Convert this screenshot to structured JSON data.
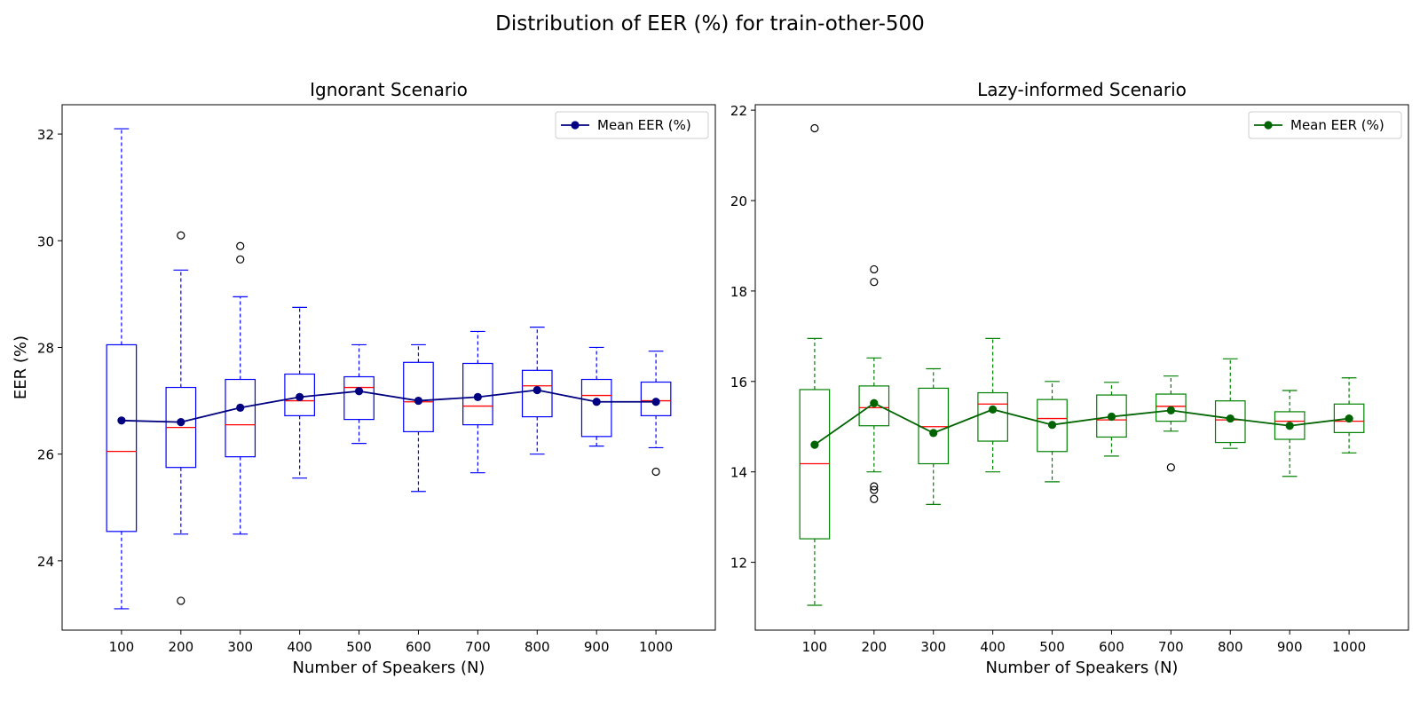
{
  "figure": {
    "title": "Distribution of EER (%) for train-other-500"
  },
  "chart_data": [
    {
      "type": "box",
      "title": "Ignorant Scenario",
      "xlabel": "Number of Speakers (N)",
      "ylabel": "EER (%)",
      "categories": [
        "100",
        "200",
        "300",
        "400",
        "500",
        "600",
        "700",
        "800",
        "900",
        "1000"
      ],
      "ylim": [
        22.7,
        32.55
      ],
      "yticks": [
        24,
        26,
        28,
        30,
        32
      ],
      "grid": false,
      "legend": {
        "position": "top-right",
        "entries": [
          "Mean EER (%)"
        ]
      },
      "box_color": "#0000ff",
      "median_color": "#ff0000",
      "mean_color": "#000080",
      "boxes": [
        {
          "whislo": 23.1,
          "q1": 24.55,
          "med": 26.05,
          "q3": 28.05,
          "whishi": 32.1,
          "fliers": []
        },
        {
          "whislo": 24.5,
          "q1": 25.75,
          "med": 26.5,
          "q3": 27.25,
          "whishi": 29.45,
          "fliers": [
            30.1,
            23.25
          ]
        },
        {
          "whislo": 24.5,
          "q1": 25.95,
          "med": 26.55,
          "q3": 27.4,
          "whishi": 28.95,
          "fliers": [
            29.9,
            29.65
          ]
        },
        {
          "whislo": 25.55,
          "q1": 26.72,
          "med": 27.0,
          "q3": 27.5,
          "whishi": 28.75,
          "fliers": []
        },
        {
          "whislo": 26.2,
          "q1": 26.65,
          "med": 27.25,
          "q3": 27.45,
          "whishi": 28.05,
          "fliers": []
        },
        {
          "whislo": 25.3,
          "q1": 26.42,
          "med": 26.98,
          "q3": 27.72,
          "whishi": 28.05,
          "fliers": []
        },
        {
          "whislo": 25.65,
          "q1": 26.55,
          "med": 26.9,
          "q3": 27.7,
          "whishi": 28.3,
          "fliers": []
        },
        {
          "whislo": 26.0,
          "q1": 26.7,
          "med": 27.28,
          "q3": 27.57,
          "whishi": 28.38,
          "fliers": []
        },
        {
          "whislo": 26.15,
          "q1": 26.33,
          "med": 27.1,
          "q3": 27.4,
          "whishi": 28.0,
          "fliers": []
        },
        {
          "whislo": 26.12,
          "q1": 26.72,
          "med": 27.0,
          "q3": 27.35,
          "whishi": 27.93,
          "fliers": [
            25.67
          ]
        }
      ],
      "series": [
        {
          "name": "Mean EER (%)",
          "values": [
            26.63,
            26.6,
            26.87,
            27.07,
            27.18,
            27.0,
            27.07,
            27.2,
            26.98,
            26.98
          ]
        }
      ]
    },
    {
      "type": "box",
      "title": "Lazy-informed Scenario",
      "xlabel": "Number of Speakers (N)",
      "ylabel": "",
      "categories": [
        "100",
        "200",
        "300",
        "400",
        "500",
        "600",
        "700",
        "800",
        "900",
        "1000"
      ],
      "ylim": [
        10.5,
        22.12
      ],
      "yticks": [
        12,
        14,
        16,
        18,
        20,
        22
      ],
      "grid": false,
      "legend": {
        "position": "top-right",
        "entries": [
          "Mean EER (%)"
        ]
      },
      "box_color": "#008000",
      "median_color": "#ff0000",
      "mean_color": "#006400",
      "boxes": [
        {
          "whislo": 11.05,
          "q1": 12.52,
          "med": 14.18,
          "q3": 15.82,
          "whishi": 16.95,
          "fliers": [
            21.6
          ]
        },
        {
          "whislo": 14.0,
          "q1": 15.02,
          "med": 15.42,
          "q3": 15.9,
          "whishi": 16.52,
          "fliers": [
            18.48,
            18.2,
            13.68,
            13.6,
            13.4
          ]
        },
        {
          "whislo": 13.28,
          "q1": 14.18,
          "med": 15.0,
          "q3": 15.85,
          "whishi": 16.28,
          "fliers": []
        },
        {
          "whislo": 14.0,
          "q1": 14.68,
          "med": 15.5,
          "q3": 15.75,
          "whishi": 16.95,
          "fliers": []
        },
        {
          "whislo": 13.78,
          "q1": 14.45,
          "med": 15.18,
          "q3": 15.6,
          "whishi": 16.0,
          "fliers": []
        },
        {
          "whislo": 14.35,
          "q1": 14.77,
          "med": 15.15,
          "q3": 15.7,
          "whishi": 15.98,
          "fliers": []
        },
        {
          "whislo": 14.9,
          "q1": 15.12,
          "med": 15.45,
          "q3": 15.72,
          "whishi": 16.12,
          "fliers": [
            14.1
          ]
        },
        {
          "whislo": 14.52,
          "q1": 14.65,
          "med": 15.15,
          "q3": 15.57,
          "whishi": 16.5,
          "fliers": []
        },
        {
          "whislo": 13.9,
          "q1": 14.72,
          "med": 15.12,
          "q3": 15.33,
          "whishi": 15.8,
          "fliers": []
        },
        {
          "whislo": 14.42,
          "q1": 14.87,
          "med": 15.12,
          "q3": 15.5,
          "whishi": 16.08,
          "fliers": []
        }
      ],
      "series": [
        {
          "name": "Mean EER (%)",
          "values": [
            14.6,
            15.52,
            14.86,
            15.38,
            15.04,
            15.22,
            15.36,
            15.18,
            15.02,
            15.18
          ]
        }
      ]
    }
  ]
}
